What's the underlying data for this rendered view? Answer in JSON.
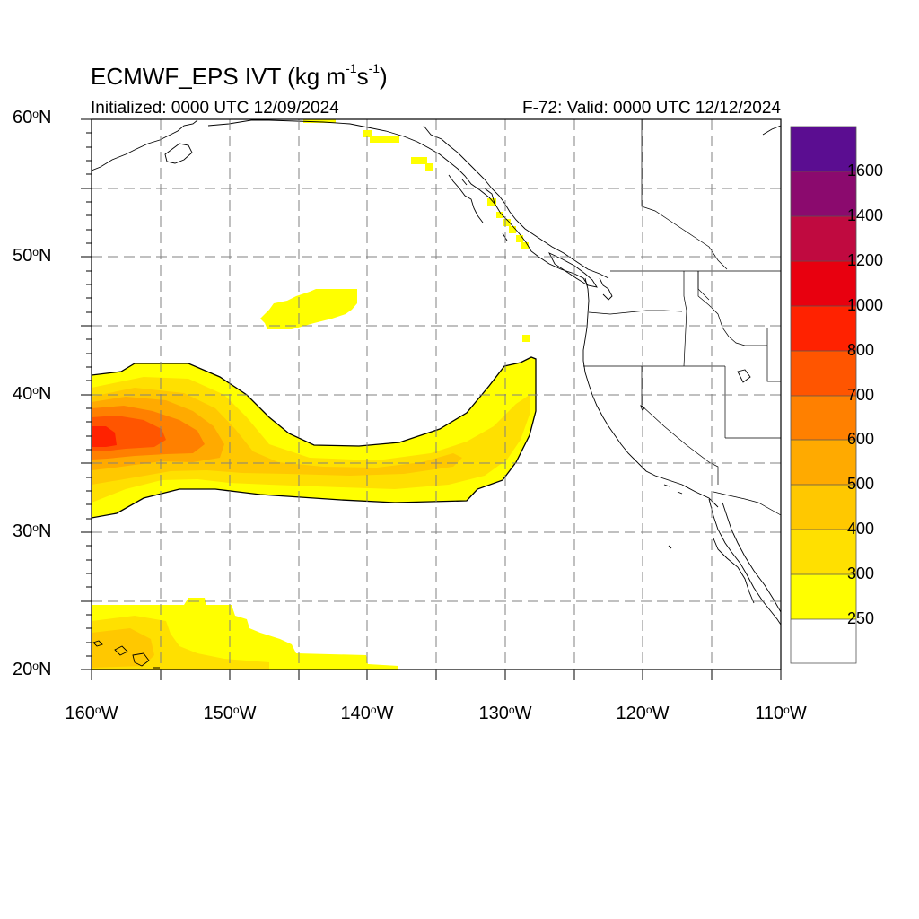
{
  "header": {
    "title_prefix": "ECMWF_EPS IVT (kg m",
    "title_exp1": "-1",
    "title_mid": "s",
    "title_exp2": "-1",
    "title_suffix": ")",
    "initialized": "Initialized: 0000 UTC 12/09/2024",
    "valid": "F-72: Valid: 0000 UTC 12/12/2024"
  },
  "axes": {
    "lat_labels": [
      {
        "num": "60",
        "hemi": "N"
      },
      {
        "num": "50",
        "hemi": "N"
      },
      {
        "num": "40",
        "hemi": "N"
      },
      {
        "num": "30",
        "hemi": "N"
      },
      {
        "num": "20",
        "hemi": "N"
      }
    ],
    "lon_labels": [
      {
        "num": "160",
        "hemi": "W"
      },
      {
        "num": "150",
        "hemi": "W"
      },
      {
        "num": "140",
        "hemi": "W"
      },
      {
        "num": "130",
        "hemi": "W"
      },
      {
        "num": "120",
        "hemi": "W"
      },
      {
        "num": "110",
        "hemi": "W"
      }
    ],
    "deg": "o"
  },
  "colorbar": {
    "labels": [
      "1600",
      "1400",
      "1200",
      "1000",
      "800",
      "700",
      "600",
      "500",
      "400",
      "300",
      "250"
    ],
    "colors": [
      "#5b0d91",
      "#8b0a6e",
      "#c00a40",
      "#e8000f",
      "#ff2200",
      "#ff5500",
      "#ff8000",
      "#ffaa00",
      "#ffc800",
      "#ffe000",
      "#ffff00",
      "#ffffff"
    ]
  },
  "map": {
    "lat_range": [
      20,
      60
    ],
    "lon_range": [
      -160,
      -110
    ],
    "field_colors": {
      "c250": "#ffff00",
      "c300": "#ffe000",
      "c400": "#ffc800",
      "c500": "#ffaa00",
      "c600": "#ff8000",
      "c700": "#ff5500",
      "c800": "#ff2200"
    }
  }
}
